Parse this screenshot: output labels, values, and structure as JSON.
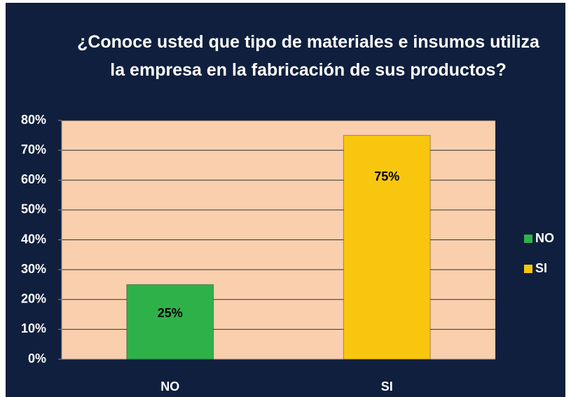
{
  "chart_data": {
    "type": "bar",
    "title": "¿Conoce usted que tipo de materiales e insumos utiliza la empresa en la fabricación de sus productos?",
    "categories": [
      "NO",
      "SI"
    ],
    "values": [
      25,
      75
    ],
    "value_labels": [
      "25%",
      "75%"
    ],
    "colors": [
      "#2fb14a",
      "#f9c60f"
    ],
    "ylim": [
      0,
      80
    ],
    "yticks": [
      {
        "value": 0,
        "label": "0%"
      },
      {
        "value": 10,
        "label": "10%"
      },
      {
        "value": 20,
        "label": "20%"
      },
      {
        "value": 30,
        "label": "30%"
      },
      {
        "value": 40,
        "label": "40%"
      },
      {
        "value": 50,
        "label": "50%"
      },
      {
        "value": 60,
        "label": "60%"
      },
      {
        "value": 70,
        "label": "70%"
      },
      {
        "value": 80,
        "label": "80%"
      }
    ],
    "grid": true,
    "legend": "right"
  }
}
